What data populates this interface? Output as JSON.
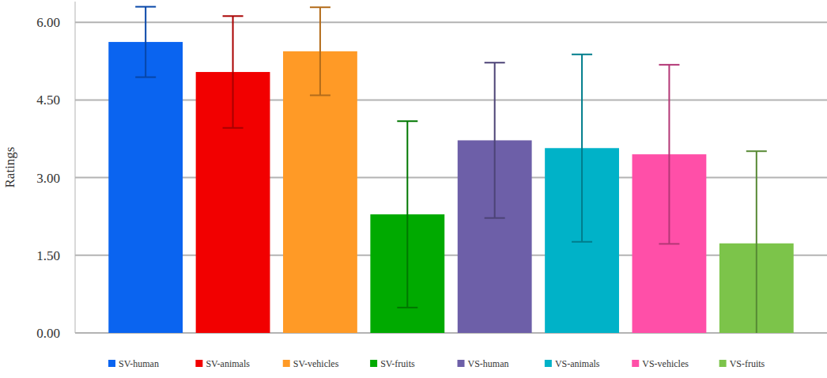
{
  "chart_data": {
    "type": "bar",
    "y_label": "Ratings",
    "categories": [
      "SV-human",
      "SV-animals",
      "SV-vehicles",
      "SV-fruits",
      "VS-human",
      "VS-animals",
      "VS-vehicles",
      "VS-fruits"
    ],
    "values": [
      5.62,
      5.04,
      5.44,
      2.29,
      3.72,
      3.57,
      3.45,
      1.73
    ],
    "errors": [
      0.68,
      1.08,
      0.85,
      1.8,
      1.5,
      1.81,
      1.73,
      1.78
    ],
    "colors": [
      "#0a64f0",
      "#f20000",
      "#ff9a26",
      "#00aa00",
      "#6d5fa8",
      "#00b2c8",
      "#ff4fa8",
      "#7cc44a"
    ],
    "ylim": [
      0,
      6.4
    ],
    "yticks": [
      {
        "value": 0,
        "label": "0.00"
      },
      {
        "value": 1.5,
        "label": "1.50"
      },
      {
        "value": 3,
        "label": "3.00"
      },
      {
        "value": 4.5,
        "label": "4.50"
      },
      {
        "value": 6,
        "label": "6.00"
      }
    ],
    "grid": true,
    "legend": "bottom",
    "tick_labels": "y"
  }
}
